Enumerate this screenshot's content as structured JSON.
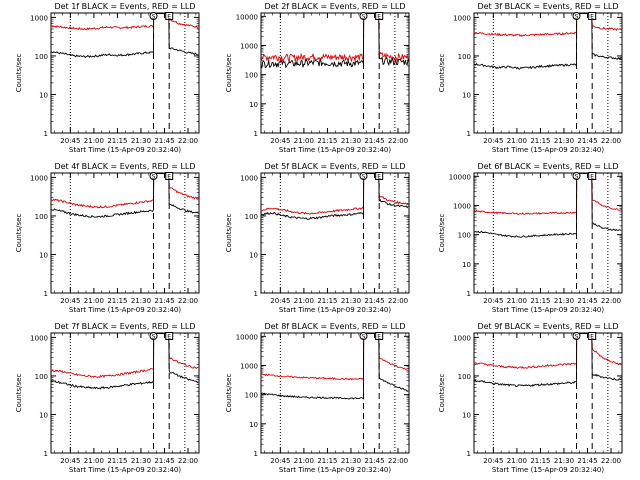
{
  "colors": {
    "events": "#000000",
    "lld": "#e00000",
    "axes": "#000000",
    "background": "#ffffff"
  },
  "shared": {
    "ylabel": "Counts/sec",
    "xlabel": "Start Time (15-Apr-09 20:32:40)",
    "xticks": [
      "20:45",
      "21:00",
      "21:15",
      "21:30",
      "21:45",
      "22:00"
    ],
    "marker_labels": [
      "S",
      "E"
    ]
  },
  "chart_data": [
    {
      "type": "line",
      "title": "Det 1f BLACK = Events, RED = LLD",
      "y_scale": "log",
      "xlim": [
        "20:32",
        "22:07"
      ],
      "yticks": [
        "1",
        "10",
        "100",
        "1000"
      ],
      "ylim": [
        1,
        1300
      ],
      "series": [
        {
          "color": "black",
          "values": [
            130,
            115,
            100,
            96,
            100,
            108,
            104,
            110,
            118,
            125
          ]
        },
        {
          "color": "red",
          "values": [
            600,
            560,
            520,
            500,
            520,
            560,
            540,
            550,
            580,
            600
          ]
        }
      ],
      "after": {
        "black": [
          160,
          140,
          120,
          110
        ],
        "red": [
          900,
          700,
          620,
          560
        ]
      }
    },
    {
      "type": "line",
      "title": "Det 2f BLACK = Events, RED = LLD",
      "y_scale": "log",
      "xlim": [
        "20:32",
        "22:07"
      ],
      "yticks": [
        "1",
        "10",
        "100",
        "1000",
        "10000"
      ],
      "ylim": [
        1,
        13000
      ],
      "series": [
        {
          "color": "black",
          "values": [
            240,
            250,
            245,
            240,
            250,
            260,
            255,
            250,
            245,
            250
          ]
        },
        {
          "color": "red",
          "values": [
            380,
            420,
            400,
            390,
            410,
            420,
            400,
            410,
            400,
            400
          ]
        }
      ],
      "after": {
        "black": [
          320,
          290,
          280,
          280
        ],
        "red": [
          480,
          420,
          400,
          400
        ]
      }
    },
    {
      "type": "line",
      "title": "Det 3f BLACK = Events, RED = LLD",
      "y_scale": "log",
      "xlim": [
        "20:32",
        "22:07"
      ],
      "yticks": [
        "1",
        "10",
        "100",
        "1000"
      ],
      "ylim": [
        1,
        1300
      ],
      "series": [
        {
          "color": "black",
          "values": [
            62,
            56,
            50,
            52,
            48,
            50,
            54,
            56,
            58,
            60
          ]
        },
        {
          "color": "red",
          "values": [
            400,
            380,
            360,
            350,
            340,
            350,
            360,
            370,
            380,
            400
          ]
        }
      ],
      "after": {
        "black": [
          110,
          95,
          90,
          85
        ],
        "red": [
          600,
          520,
          500,
          480
        ]
      }
    },
    {
      "type": "line",
      "title": "Det 4f BLACK = Events, RED = LLD",
      "y_scale": "log",
      "xlim": [
        "20:32",
        "22:07"
      ],
      "yticks": [
        "1",
        "10",
        "100",
        "1000"
      ],
      "ylim": [
        1,
        1300
      ],
      "series": [
        {
          "color": "black",
          "values": [
            150,
            130,
            110,
            100,
            95,
            100,
            110,
            120,
            130,
            140
          ]
        },
        {
          "color": "red",
          "values": [
            270,
            240,
            200,
            180,
            170,
            175,
            190,
            210,
            230,
            250
          ]
        }
      ],
      "after": {
        "black": [
          200,
          160,
          130,
          120
        ],
        "red": [
          550,
          400,
          320,
          280
        ]
      }
    },
    {
      "type": "line",
      "title": "Det 5f BLACK = Events, RED = LLD",
      "y_scale": "log",
      "xlim": [
        "20:32",
        "22:07"
      ],
      "yticks": [
        "1",
        "10",
        "100",
        "1000"
      ],
      "ylim": [
        1,
        1300
      ],
      "series": [
        {
          "color": "black",
          "values": [
            110,
            120,
            100,
            90,
            85,
            90,
            100,
            105,
            110,
            120
          ]
        },
        {
          "color": "red",
          "values": [
            140,
            160,
            140,
            125,
            115,
            120,
            130,
            140,
            150,
            160
          ]
        }
      ],
      "after": {
        "black": [
          260,
          200,
          180,
          170
        ],
        "red": [
          330,
          250,
          220,
          210
        ]
      }
    },
    {
      "type": "line",
      "title": "Det 6f BLACK = Events, RED = LLD",
      "y_scale": "log",
      "xlim": [
        "20:32",
        "22:07"
      ],
      "yticks": [
        "1",
        "10",
        "100",
        "1000",
        "10000"
      ],
      "ylim": [
        1,
        13000
      ],
      "series": [
        {
          "color": "black",
          "values": [
            130,
            120,
            100,
            90,
            85,
            90,
            95,
            100,
            105,
            110
          ]
        },
        {
          "color": "red",
          "values": [
            650,
            600,
            560,
            540,
            520,
            530,
            540,
            550,
            560,
            580
          ]
        }
      ],
      "after": {
        "black": [
          250,
          170,
          150,
          140
        ],
        "red": [
          1600,
          1000,
          800,
          700
        ]
      }
    },
    {
      "type": "line",
      "title": "Det 7f BLACK = Events, RED = LLD",
      "y_scale": "log",
      "xlim": [
        "20:32",
        "22:07"
      ],
      "yticks": [
        "1",
        "10",
        "100",
        "1000"
      ],
      "ylim": [
        1,
        1300
      ],
      "series": [
        {
          "color": "black",
          "values": [
            75,
            65,
            55,
            50,
            48,
            50,
            55,
            60,
            65,
            70
          ]
        },
        {
          "color": "red",
          "values": [
            140,
            130,
            110,
            100,
            95,
            100,
            110,
            120,
            135,
            150
          ]
        }
      ],
      "after": {
        "black": [
          130,
          100,
          80,
          70
        ],
        "red": [
          300,
          220,
          180,
          160
        ]
      }
    },
    {
      "type": "line",
      "title": "Det 8f BLACK = Events, RED = LLD",
      "y_scale": "log",
      "xlim": [
        "20:32",
        "22:07"
      ],
      "yticks": [
        "1",
        "10",
        "100",
        "1000",
        "10000"
      ],
      "ylim": [
        1,
        13000
      ],
      "series": [
        {
          "color": "black",
          "values": [
            110,
            100,
            90,
            85,
            80,
            80,
            78,
            76,
            75,
            75
          ]
        },
        {
          "color": "red",
          "values": [
            500,
            460,
            420,
            400,
            380,
            370,
            360,
            350,
            340,
            350
          ]
        }
      ],
      "after": {
        "black": [
          350,
          250,
          180,
          130
        ],
        "red": [
          1800,
          1200,
          900,
          700
        ]
      }
    },
    {
      "type": "line",
      "title": "Det 9f BLACK = Events, RED = LLD",
      "y_scale": "log",
      "xlim": [
        "20:32",
        "22:07"
      ],
      "yticks": [
        "1",
        "10",
        "100",
        "1000"
      ],
      "ylim": [
        1,
        1300
      ],
      "series": [
        {
          "color": "black",
          "values": [
            75,
            70,
            62,
            58,
            55,
            57,
            60,
            62,
            65,
            68
          ]
        },
        {
          "color": "red",
          "values": [
            220,
            200,
            180,
            170,
            165,
            170,
            180,
            190,
            200,
            210
          ]
        }
      ],
      "after": {
        "black": [
          110,
          95,
          85,
          80
        ],
        "red": [
          500,
          300,
          230,
          200
        ]
      }
    }
  ]
}
